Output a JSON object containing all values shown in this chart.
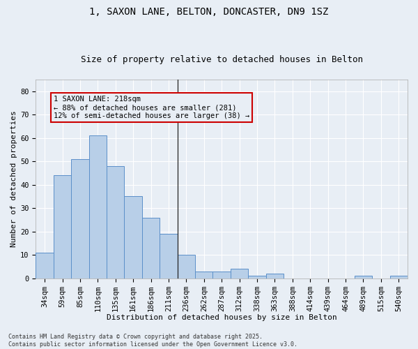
{
  "title": "1, SAXON LANE, BELTON, DONCASTER, DN9 1SZ",
  "subtitle": "Size of property relative to detached houses in Belton",
  "xlabel": "Distribution of detached houses by size in Belton",
  "ylabel": "Number of detached properties",
  "bar_labels": [
    "34sqm",
    "59sqm",
    "85sqm",
    "110sqm",
    "135sqm",
    "161sqm",
    "186sqm",
    "211sqm",
    "236sqm",
    "262sqm",
    "287sqm",
    "312sqm",
    "338sqm",
    "363sqm",
    "388sqm",
    "414sqm",
    "439sqm",
    "464sqm",
    "489sqm",
    "515sqm",
    "540sqm"
  ],
  "bar_values": [
    11,
    44,
    51,
    61,
    48,
    35,
    26,
    19,
    10,
    3,
    3,
    4,
    1,
    2,
    0,
    0,
    0,
    0,
    1,
    0,
    1
  ],
  "bar_color": "#b8cfe8",
  "bar_edge_color": "#5b8fc9",
  "background_color": "#e8eef5",
  "grid_color": "#ffffff",
  "ylim": [
    0,
    85
  ],
  "yticks": [
    0,
    10,
    20,
    30,
    40,
    50,
    60,
    70,
    80
  ],
  "annotation_text": "1 SAXON LANE: 218sqm\n← 88% of detached houses are smaller (281)\n12% of semi-detached houses are larger (38) →",
  "vline_color": "#222222",
  "annotation_box_color": "#cc0000",
  "footer_text": "Contains HM Land Registry data © Crown copyright and database right 2025.\nContains public sector information licensed under the Open Government Licence v3.0.",
  "title_fontsize": 10,
  "subtitle_fontsize": 9,
  "axis_label_fontsize": 8,
  "tick_fontsize": 7.5,
  "annotation_fontsize": 7.5,
  "footer_fontsize": 6
}
